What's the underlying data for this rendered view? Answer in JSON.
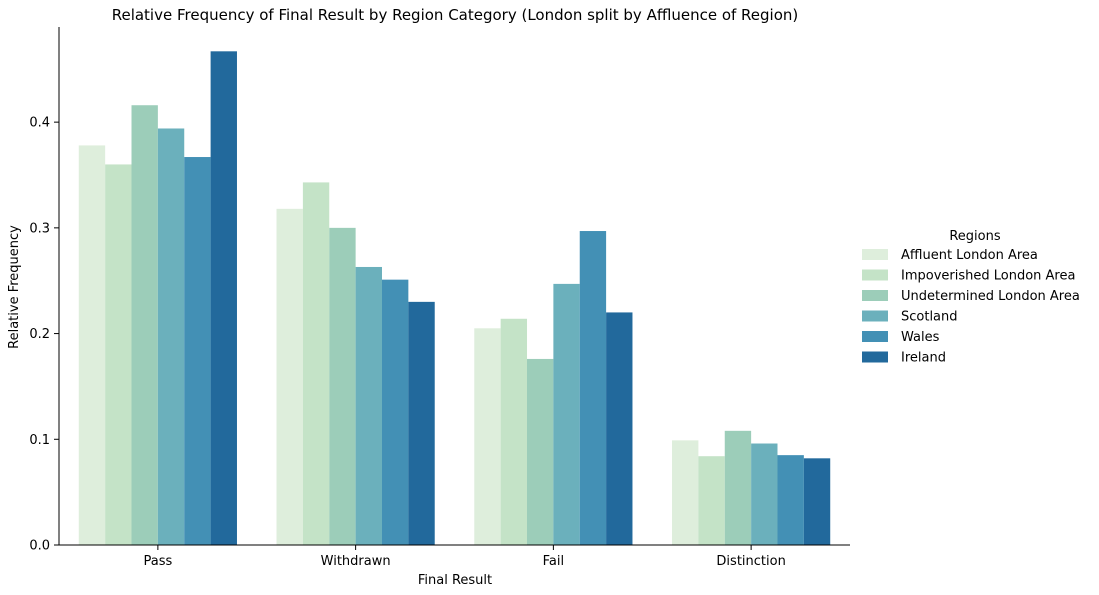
{
  "chart_data": {
    "type": "bar",
    "title": "Relative Frequency of Final Result by Region Category (London split by Affluence of Region)",
    "xlabel": "Final Result",
    "ylabel": "Relative Frequency",
    "categories": [
      "Pass",
      "Withdrawn",
      "Fail",
      "Distinction"
    ],
    "ylim": [
      0,
      0.49
    ],
    "yticks": [
      0.0,
      0.1,
      0.2,
      0.3,
      0.4
    ],
    "ytick_labels": [
      "0.0",
      "0.1",
      "0.2",
      "0.3",
      "0.4"
    ],
    "grid": false,
    "legend_title": "Regions",
    "legend_position": "right",
    "series": [
      {
        "name": "Affluent London Area",
        "color": "#deeedc",
        "values": [
          0.378,
          0.318,
          0.205,
          0.099
        ]
      },
      {
        "name": "Impoverished London Area",
        "color": "#c4e3c7",
        "values": [
          0.36,
          0.343,
          0.214,
          0.084
        ]
      },
      {
        "name": "Undetermined London Area",
        "color": "#9ccdb9",
        "values": [
          0.416,
          0.3,
          0.176,
          0.108
        ]
      },
      {
        "name": "Scotland",
        "color": "#6bb0bc",
        "values": [
          0.394,
          0.263,
          0.247,
          0.096
        ]
      },
      {
        "name": "Wales",
        "color": "#4390b5",
        "values": [
          0.367,
          0.251,
          0.297,
          0.085
        ]
      },
      {
        "name": "Ireland",
        "color": "#22699c",
        "values": [
          0.467,
          0.23,
          0.22,
          0.082
        ]
      }
    ]
  }
}
